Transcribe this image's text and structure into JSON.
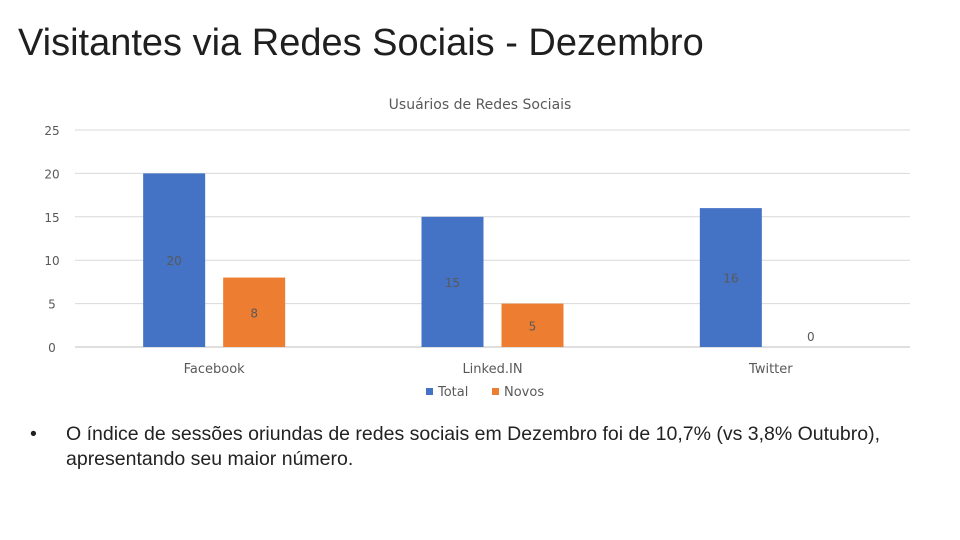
{
  "slide": {
    "title": "Visitantes via Redes Sociais - Dezembro",
    "bullet_marker": "•",
    "bullet": "O índice de sessões oriundas de redes sociais em Dezembro foi de 10,7% (vs 3,8% Outubro), apresentando seu maior número."
  },
  "chart_data": {
    "type": "bar",
    "title": "Usuários de Redes Sociais",
    "categories": [
      "Facebook",
      "Linked.IN",
      "Twitter"
    ],
    "series": [
      {
        "name": "Total",
        "values": [
          20,
          15,
          16
        ],
        "color": "#4472C4"
      },
      {
        "name": "Novos",
        "values": [
          8,
          5,
          0
        ],
        "color": "#ED7D31"
      }
    ],
    "ylim": [
      0,
      25
    ],
    "yticks": [
      0,
      5,
      10,
      15,
      20,
      25
    ],
    "grid": true,
    "legend": "bottom",
    "data_labels": true
  }
}
